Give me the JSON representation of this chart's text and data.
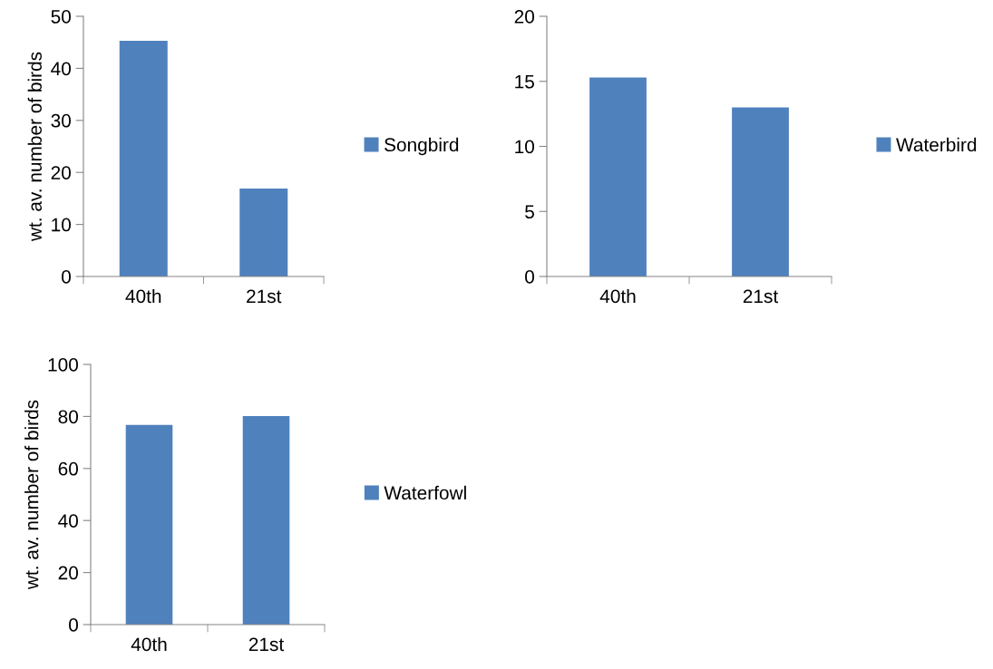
{
  "chart_data": [
    {
      "type": "bar",
      "ylabel": "wt. av. number of birds",
      "categories": [
        "40th",
        "21st"
      ],
      "series": [
        {
          "name": "Songbird",
          "color": "#4f81bd",
          "values": [
            45.3,
            16.9
          ]
        }
      ],
      "ylim": [
        0,
        50
      ],
      "yticks": [
        0,
        10,
        20,
        30,
        40,
        50
      ],
      "grid": false,
      "legend": "right"
    },
    {
      "type": "bar",
      "categories": [
        "40th",
        "21st"
      ],
      "series": [
        {
          "name": "Waterbird",
          "color": "#4f81bd",
          "values": [
            15.3,
            13.0
          ]
        }
      ],
      "ylim": [
        0,
        20
      ],
      "yticks": [
        0,
        5,
        10,
        15,
        20
      ],
      "grid": false,
      "legend": "right"
    },
    {
      "type": "bar",
      "ylabel": "wt. av. number of birds",
      "categories": [
        "40th",
        "21st"
      ],
      "series": [
        {
          "name": "Waterfowl",
          "color": "#4f81bd",
          "values": [
            76.7,
            80.1
          ]
        }
      ],
      "ylim": [
        0,
        100
      ],
      "yticks": [
        0,
        20,
        40,
        60,
        80,
        100
      ],
      "grid": false,
      "legend": "right"
    }
  ]
}
